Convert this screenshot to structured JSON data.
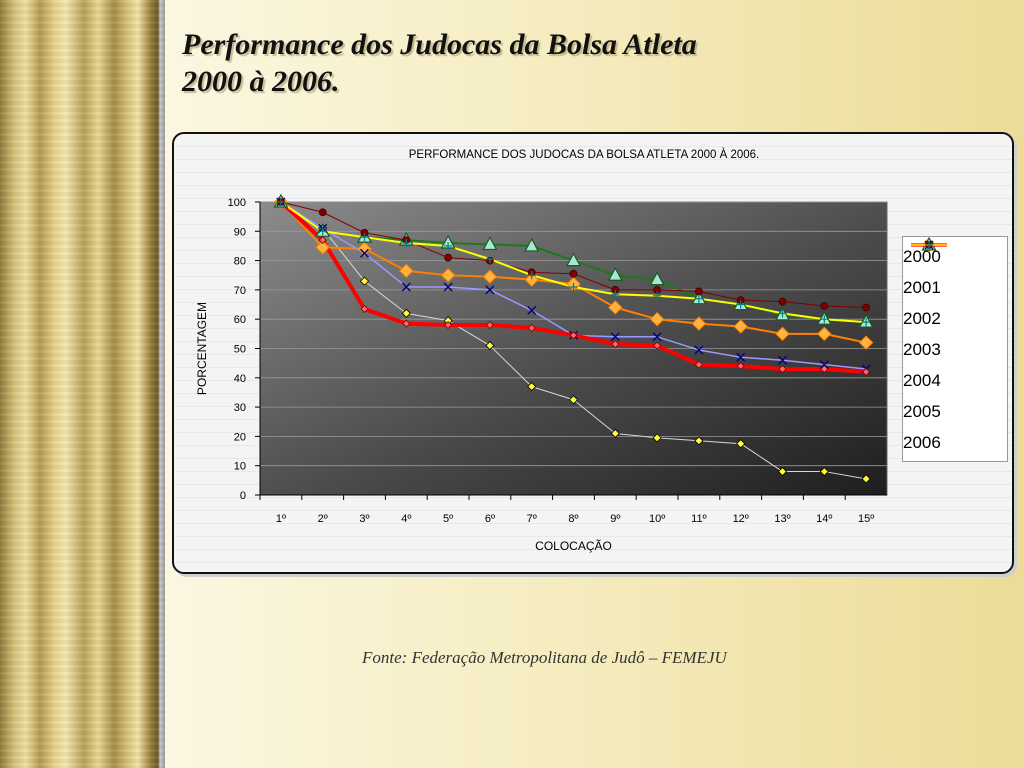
{
  "slide": {
    "title_line1": "Performance dos Judocas da Bolsa Atleta",
    "title_line2": "2000 à 2006.",
    "source": "Fonte: Federação Metropolitana de Judô – FEMEJU"
  },
  "chart_data": {
    "type": "line",
    "title": "PERFORMANCE DOS JUDOCAS DA BOLSA ATLETA 2000 À 2006.",
    "xlabel": "COLOCAÇÃO",
    "ylabel": "PORCENTAGEM",
    "ylim": [
      0,
      100
    ],
    "yticks": [
      0,
      10,
      20,
      30,
      40,
      50,
      60,
      70,
      80,
      90,
      100
    ],
    "categories": [
      "1º",
      "2º",
      "3º",
      "4º",
      "5º",
      "6º",
      "7º",
      "8º",
      "9º",
      "10º",
      "11º",
      "12º",
      "13º",
      "14º",
      "15º"
    ],
    "legend": "right",
    "series": [
      {
        "name": "2000",
        "color": "#d9d9d9",
        "marker": "diamond-small",
        "width": 1,
        "values": [
          100,
          91,
          73,
          62,
          59.5,
          51,
          37,
          32.5,
          21,
          19.5,
          18.5,
          17.5,
          8,
          8,
          5.5
        ]
      },
      {
        "name": "2001",
        "color": "#ff8000",
        "marker": "diamond",
        "width": 2,
        "values": [
          100,
          84.5,
          84,
          76.5,
          75,
          74.5,
          73.5,
          72,
          64,
          60,
          58.5,
          57.5,
          55,
          55,
          52
        ]
      },
      {
        "name": "2002",
        "color": "#1a7a1a",
        "marker": "triangle",
        "width": 2,
        "values": [
          100,
          90,
          88,
          87,
          86,
          85.5,
          85,
          80,
          75,
          73.5,
          67,
          65,
          61.5,
          60,
          59
        ]
      },
      {
        "name": "2003",
        "color": "#9999ff",
        "marker": "x",
        "width": 1.5,
        "values": [
          100,
          91,
          82.5,
          71,
          71,
          70,
          63,
          54.5,
          54,
          54,
          49.5,
          47,
          46,
          44.5,
          43
        ]
      },
      {
        "name": "2004",
        "color": "#ff0000",
        "marker": "diamond-red",
        "width": 4,
        "values": [
          100,
          87,
          63.5,
          58.5,
          58,
          58,
          57,
          54.5,
          51.5,
          51,
          44.5,
          44,
          43,
          43,
          42
        ]
      },
      {
        "name": "2005",
        "color": "#800000",
        "marker": "circle",
        "width": 1,
        "values": [
          100,
          96.5,
          89.5,
          87,
          81,
          80,
          76,
          75.5,
          70,
          70,
          69.5,
          66.5,
          66,
          64.5,
          64
        ]
      },
      {
        "name": "2006",
        "color": "#ffff00",
        "marker": "plus",
        "width": 2,
        "values": [
          100,
          90,
          88,
          86,
          85,
          80.5,
          75,
          71,
          68.5,
          68,
          67,
          65,
          62,
          60,
          59
        ]
      }
    ]
  }
}
